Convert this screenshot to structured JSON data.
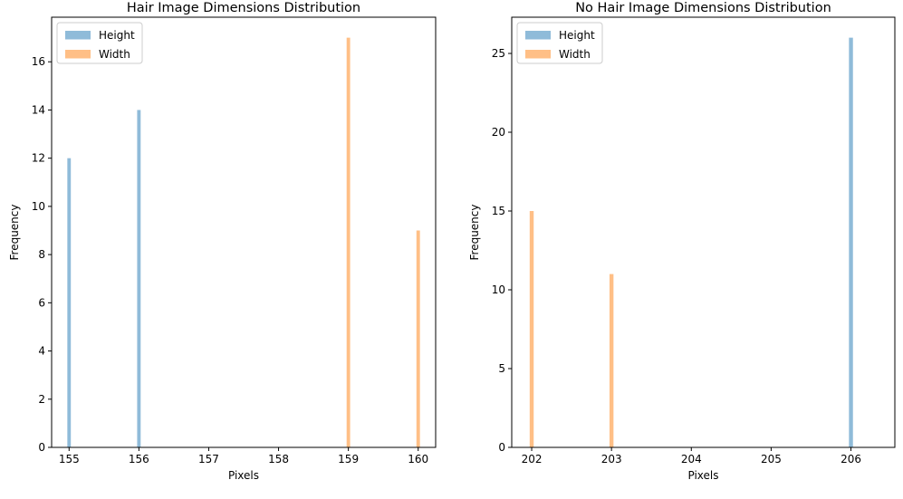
{
  "colors": {
    "height": "#1f77b4",
    "width": "#ff7f0e",
    "axis": "#000000",
    "background": "#ffffff"
  },
  "chart_data": [
    {
      "type": "bar",
      "title": "Hair Image Dimensions Distribution",
      "xlabel": "Pixels",
      "ylabel": "Frequency",
      "xlim": [
        154.75,
        160.25
      ],
      "ylim": [
        0,
        17.85
      ],
      "xticks": [
        155,
        156,
        157,
        158,
        159,
        160
      ],
      "yticks": [
        0,
        2,
        4,
        6,
        8,
        10,
        12,
        14,
        16
      ],
      "legend_position": "top-left",
      "bar_width": 0.05,
      "series": [
        {
          "name": "Height",
          "color_key": "height",
          "opacity": 0.5,
          "x": [
            155,
            156
          ],
          "values": [
            12,
            14
          ]
        },
        {
          "name": "Width",
          "color_key": "width",
          "opacity": 0.5,
          "x": [
            159,
            160
          ],
          "values": [
            17,
            9
          ]
        }
      ]
    },
    {
      "type": "bar",
      "title": "No Hair Image Dimensions Distribution",
      "xlabel": "Pixels",
      "ylabel": "Frequency",
      "xlim": [
        201.75,
        206.55
      ],
      "ylim": [
        0,
        27.3
      ],
      "xticks": [
        202,
        203,
        204,
        205,
        206
      ],
      "yticks": [
        0,
        5,
        10,
        15,
        20,
        25
      ],
      "legend_position": "top-left",
      "bar_width": 0.05,
      "series": [
        {
          "name": "Height",
          "color_key": "height",
          "opacity": 0.5,
          "x": [
            206
          ],
          "values": [
            26
          ]
        },
        {
          "name": "Width",
          "color_key": "width",
          "opacity": 0.5,
          "x": [
            202,
            203
          ],
          "values": [
            15,
            11
          ]
        }
      ]
    }
  ]
}
